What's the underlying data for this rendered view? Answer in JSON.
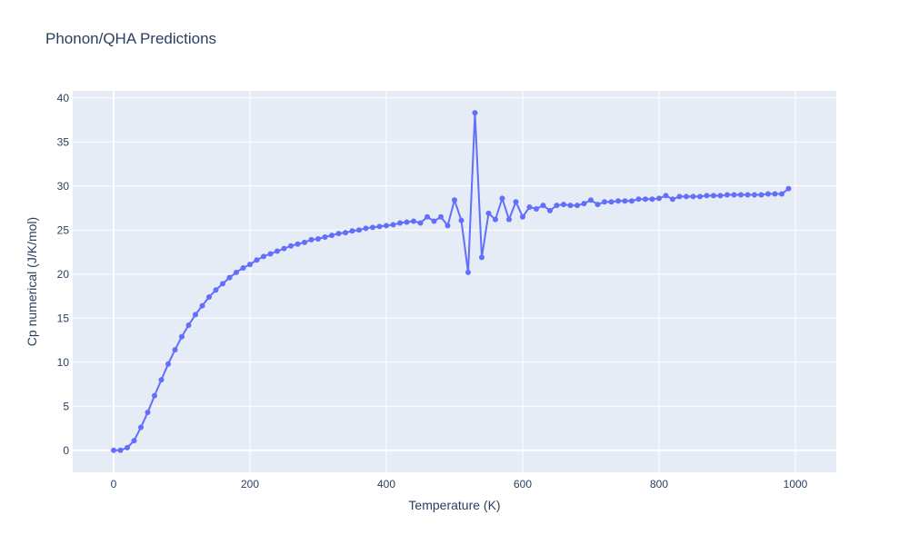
{
  "chart_data": {
    "type": "line",
    "title": "Phonon/QHA Predictions",
    "xlabel": "Temperature (K)",
    "ylabel": "Cp numerical (J/K/mol)",
    "xlim": [
      -60,
      1060
    ],
    "ylim": [
      -2.5,
      40.8
    ],
    "xticks": [
      0,
      200,
      400,
      600,
      800,
      1000
    ],
    "yticks": [
      0,
      5,
      10,
      15,
      20,
      25,
      30,
      35,
      40
    ],
    "grid": true,
    "legend": "none",
    "colors": {
      "series": "#636efa",
      "plot_bg": "#e5ecf6",
      "grid": "#ffffff",
      "text": "#2a3f5f"
    },
    "series": [
      {
        "x": [
          0,
          10,
          20,
          30,
          40,
          50,
          60,
          70,
          80,
          90,
          100,
          110,
          120,
          130,
          140,
          150,
          160,
          170,
          180,
          190,
          200,
          210,
          220,
          230,
          240,
          250,
          260,
          270,
          280,
          290,
          300,
          310,
          320,
          330,
          340,
          350,
          360,
          370,
          380,
          390,
          400,
          410,
          420,
          430,
          440,
          450,
          460,
          470,
          480,
          490,
          500,
          510,
          520,
          530,
          540,
          550,
          560,
          570,
          580,
          590,
          600,
          610,
          620,
          630,
          640,
          650,
          660,
          670,
          680,
          690,
          700,
          710,
          720,
          730,
          740,
          750,
          760,
          770,
          780,
          790,
          800,
          810,
          820,
          830,
          840,
          850,
          860,
          870,
          880,
          890,
          900,
          910,
          920,
          930,
          940,
          950,
          960,
          970,
          980,
          990
        ],
        "y": [
          0.0,
          0.0,
          0.3,
          1.1,
          2.6,
          4.3,
          6.2,
          8.0,
          9.8,
          11.4,
          12.9,
          14.2,
          15.4,
          16.4,
          17.4,
          18.2,
          18.9,
          19.6,
          20.2,
          20.7,
          21.1,
          21.6,
          22.0,
          22.3,
          22.6,
          22.9,
          23.2,
          23.4,
          23.6,
          23.9,
          24.0,
          24.2,
          24.4,
          24.6,
          24.7,
          24.9,
          25.0,
          25.2,
          25.3,
          25.4,
          25.5,
          25.6,
          25.8,
          25.9,
          26.0,
          25.8,
          26.5,
          26.0,
          26.5,
          25.5,
          28.4,
          26.1,
          20.2,
          38.3,
          21.9,
          26.9,
          26.2,
          28.6,
          26.2,
          28.2,
          26.5,
          27.6,
          27.4,
          27.8,
          27.2,
          27.8,
          27.9,
          27.8,
          27.8,
          28.0,
          28.4,
          27.9,
          28.2,
          28.2,
          28.3,
          28.3,
          28.3,
          28.5,
          28.5,
          28.5,
          28.6,
          28.9,
          28.5,
          28.8,
          28.8,
          28.8,
          28.8,
          28.9,
          28.9,
          28.9,
          29.0,
          29.0,
          29.0,
          29.0,
          29.0,
          29.0,
          29.1,
          29.1,
          29.1,
          29.7
        ]
      }
    ]
  }
}
